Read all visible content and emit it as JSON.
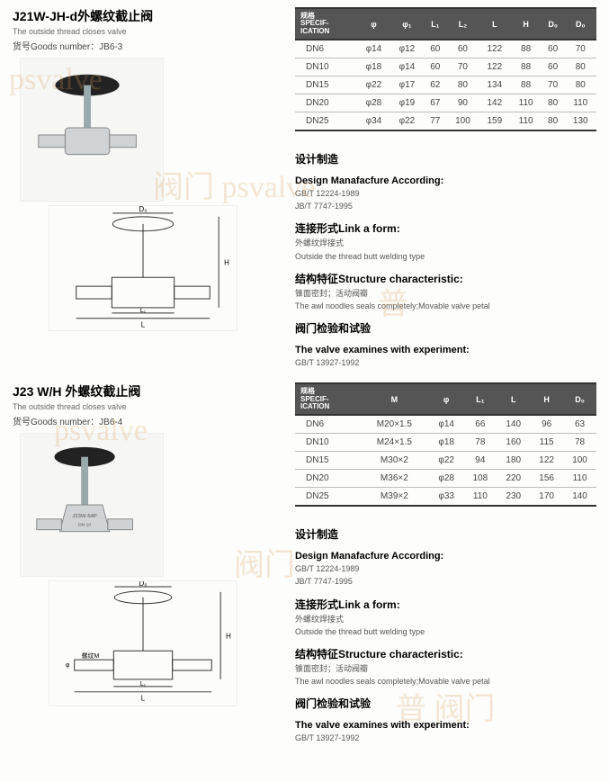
{
  "product1": {
    "title": "J21W-JH-d外螺纹截止阀",
    "subtitle": "The outside thread closes valve",
    "goods_label": "货号Goods number：",
    "goods_number": "JB6-3",
    "photo_alt": "valve photo",
    "diagram_alt": "valve diagram",
    "table": {
      "header_label": "规格\nSPECIF-\nICATION",
      "columns": [
        "φ",
        "φ₁",
        "L₁",
        "L₂",
        "L",
        "H",
        "D₀",
        "D₀"
      ],
      "rows": [
        [
          "DN6",
          "φ14",
          "φ12",
          "60",
          "60",
          "122",
          "88",
          "60",
          "70"
        ],
        [
          "DN10",
          "φ18",
          "φ14",
          "60",
          "70",
          "122",
          "88",
          "60",
          "80"
        ],
        [
          "DN15",
          "φ22",
          "φ17",
          "62",
          "80",
          "134",
          "88",
          "70",
          "80"
        ],
        [
          "DN20",
          "φ28",
          "φ19",
          "67",
          "90",
          "142",
          "110",
          "80",
          "110"
        ],
        [
          "DN25",
          "φ34",
          "φ22",
          "77",
          "100",
          "159",
          "110",
          "80",
          "130"
        ]
      ]
    }
  },
  "product2": {
    "title": "J23 W/H 外螺纹截止阀",
    "subtitle": "The outside thread closes valve",
    "goods_label": "货号Goods number：",
    "goods_number": "JB6-4",
    "photo_alt": "valve photo",
    "diagram_alt": "valve diagram",
    "table": {
      "header_label": "规格\nSPECIF-\nICATION",
      "columns": [
        "M",
        "φ",
        "L₁",
        "L",
        "H",
        "D₀"
      ],
      "rows": [
        [
          "DN6",
          "M20×1.5",
          "φ14",
          "66",
          "140",
          "96",
          "63"
        ],
        [
          "DN10",
          "M24×1.5",
          "φ18",
          "78",
          "160",
          "115",
          "78"
        ],
        [
          "DN15",
          "M30×2",
          "φ22",
          "94",
          "180",
          "122",
          "100"
        ],
        [
          "DN20",
          "M36×2",
          "φ28",
          "108",
          "220",
          "156",
          "110"
        ],
        [
          "DN25",
          "M39×2",
          "φ33",
          "110",
          "230",
          "170",
          "140"
        ]
      ]
    }
  },
  "info": {
    "h1_cn": "设计制造",
    "h1_en": "Design Manafacfure According:",
    "h1_body1": "GB/T 12224-1989",
    "h1_body2": "JB/T 7747-1995",
    "h2_cn": "连接形式",
    "h2_en": "Link a form:",
    "h2_body_cn": "外螺纹焊接式",
    "h2_body_en": "Outside the thread butt welding type",
    "h3_cn": "结构特征",
    "h3_en": "Structure characteristic:",
    "h3_body_cn": "锥面密封；活动阀瓣",
    "h3_body_en": "The awl noodles seals completely;Movable valve petal",
    "h4_cn": "阀门检验和试验",
    "h4_en": "The valve examines with experiment:",
    "h4_body": "GB/T 13927-1992"
  },
  "colors": {
    "header_bg": "#555555",
    "header_fg": "#ffffff",
    "rule": "#333333",
    "row_rule": "#bbbbbb",
    "text": "#333333",
    "sub_text": "#666666"
  },
  "diagram_labels": {
    "D0": "D₀",
    "H": "H",
    "L": "L",
    "L1": "L₁",
    "phi": "φ",
    "M": "螺纹M"
  }
}
